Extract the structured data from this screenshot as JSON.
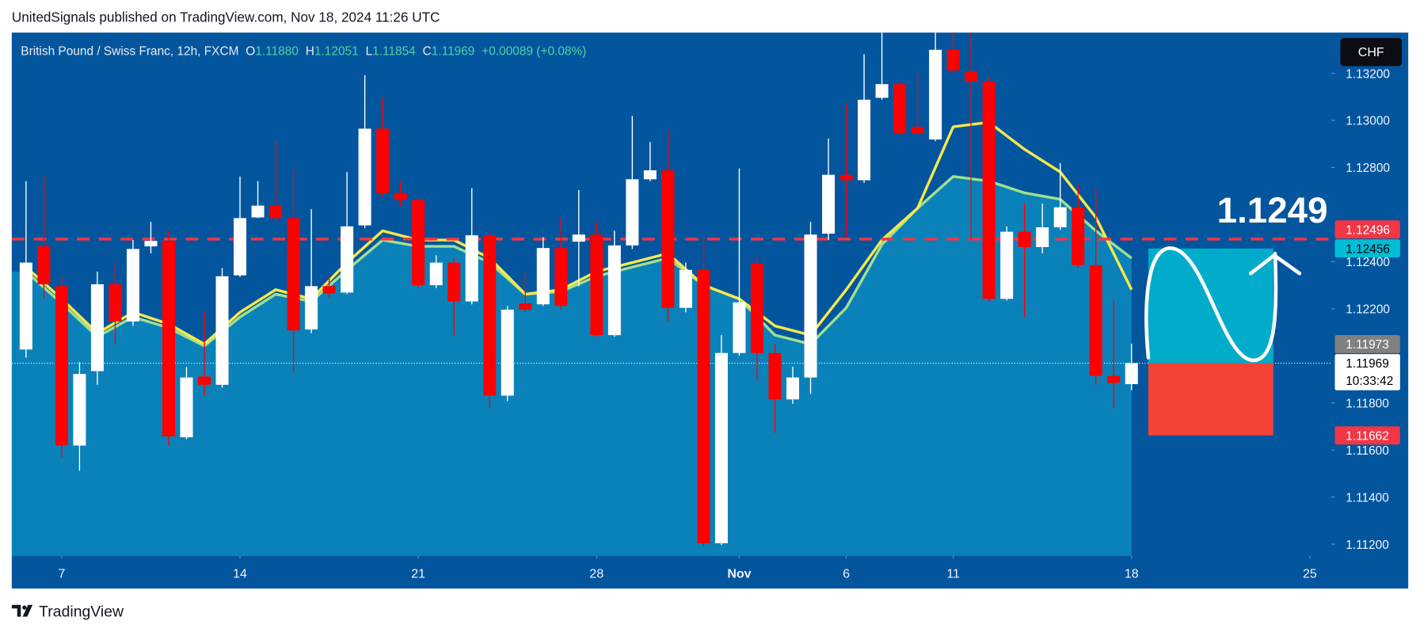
{
  "header": {
    "text": "UnitedSignals published on TradingView.com, Nov 18, 2024 11:26 UTC"
  },
  "chart_data": {
    "type": "candlestick",
    "legend": {
      "symbol": "British Pound / Swiss Franc, 12h, FXCM",
      "o_label": "O",
      "o": "1.11880",
      "h_label": "H",
      "h": "1.12051",
      "l_label": "L",
      "l": "1.11854",
      "c_label": "C",
      "c": "1.11969",
      "change": "+0.00089 (+0.08%)"
    },
    "currency_button": "CHF",
    "up_color": "#ffffff",
    "down_color": "#ff0000",
    "x": [
      -1,
      -0.5,
      0,
      0.5,
      1,
      1.5,
      2,
      2.5,
      3,
      3.5,
      4,
      4.5,
      5,
      5.5,
      6,
      6.5,
      7,
      7.5,
      8,
      8.5,
      9,
      9.5,
      10,
      10.5,
      11,
      11.5,
      12,
      12.5,
      13,
      13.5,
      14,
      14.5,
      15,
      15.5,
      16,
      16.5,
      17,
      17.5,
      18,
      18.5,
      19,
      19.5,
      20,
      20.5,
      21,
      21.5,
      22,
      22.5,
      23,
      23.5,
      24,
      24.5,
      25,
      25.5,
      26,
      26.5,
      27,
      27.5,
      28,
      28.5,
      29,
      29.5,
      30
    ],
    "open": [
      1.12027,
      1.12465,
      1.12296,
      1.11619,
      1.11935,
      1.12304,
      1.12146,
      1.12465,
      1.12488,
      1.11654,
      1.11912,
      1.11877,
      1.12342,
      1.12588,
      1.12638,
      1.12585,
      1.12112,
      1.12296,
      1.12269,
      1.12554,
      1.12965,
      1.12692,
      1.12662,
      1.123,
      1.12396,
      1.12231,
      1.12512,
      1.11831,
      1.12223,
      1.12219,
      1.12458,
      1.12485,
      1.12515,
      1.12088,
      1.12469,
      1.1275,
      1.12788,
      1.12204,
      1.12365,
      1.11204,
      1.12012,
      1.12392,
      1.12012,
      1.11815,
      1.11908,
      1.12519,
      1.12769,
      1.12746,
      1.13096,
      1.13154,
      1.12973,
      1.12919,
      1.133,
      1.13208,
      1.13165,
      1.12242,
      1.12527,
      1.12462,
      1.12546,
      1.12631,
      1.12385,
      1.11915,
      1.1188
    ],
    "high": [
      1.12742,
      1.12762,
      1.12338,
      1.11973,
      1.12358,
      1.12396,
      1.12492,
      1.12569,
      1.12531,
      1.11954,
      1.12185,
      1.12373,
      1.12762,
      1.12742,
      1.12915,
      1.128,
      1.12623,
      1.12338,
      1.12781,
      1.13192,
      1.13096,
      1.12742,
      1.12673,
      1.12427,
      1.12415,
      1.12712,
      1.12531,
      1.12212,
      1.12358,
      1.12504,
      1.12588,
      1.12704,
      1.12569,
      1.12531,
      1.13019,
      1.12908,
      1.12958,
      1.12396,
      1.12512,
      1.12088,
      1.12796,
      1.12415,
      1.1205,
      1.11954,
      1.12569,
      1.12923,
      1.13069,
      1.13281,
      1.134,
      1.13165,
      1.13204,
      1.134,
      1.134,
      1.134,
      1.13185,
      1.1255,
      1.12646,
      1.12646,
      1.12819,
      1.12723,
      1.12712,
      1.12235,
      1.12051
    ],
    "low": [
      1.11992,
      1.12242,
      1.11569,
      1.11512,
      1.11877,
      1.1205,
      1.12127,
      1.12435,
      1.11619,
      1.11646,
      1.11831,
      1.11865,
      1.12335,
      1.12585,
      1.12569,
      1.11927,
      1.12096,
      1.12242,
      1.12262,
      1.12542,
      1.12673,
      1.12635,
      1.12288,
      1.12288,
      1.12088,
      1.12219,
      1.11781,
      1.11808,
      1.12185,
      1.12212,
      1.12196,
      1.12296,
      1.12081,
      1.12081,
      1.12454,
      1.12742,
      1.12146,
      1.12185,
      1.11192,
      1.11196,
      1.12,
      1.11896,
      1.11673,
      1.11796,
      1.11838,
      1.12492,
      1.12504,
      1.12735,
      1.13088,
      1.12935,
      1.12935,
      1.12912,
      1.13196,
      1.12492,
      1.12231,
      1.12235,
      1.12165,
      1.12435,
      1.12535,
      1.12373,
      1.11877,
      1.11781,
      1.11854
    ],
    "close": [
      1.12396,
      1.12304,
      1.11619,
      1.11923,
      1.12304,
      1.12146,
      1.12454,
      1.12488,
      1.11658,
      1.11908,
      1.11877,
      1.12338,
      1.12585,
      1.12638,
      1.12585,
      1.12108,
      1.12296,
      1.12265,
      1.1255,
      1.12965,
      1.12692,
      1.12662,
      1.123,
      1.12396,
      1.12231,
      1.12512,
      1.11831,
      1.12196,
      1.12196,
      1.12458,
      1.12212,
      1.12515,
      1.12088,
      1.12469,
      1.1275,
      1.12788,
      1.12204,
      1.12365,
      1.11204,
      1.12012,
      1.12227,
      1.12012,
      1.11815,
      1.11908,
      1.12515,
      1.12769,
      1.12746,
      1.13088,
      1.13154,
      1.12946,
      1.12946,
      1.133,
      1.13212,
      1.13165,
      1.12242,
      1.12527,
      1.12462,
      1.12546,
      1.12631,
      1.12385,
      1.11915,
      1.11885,
      1.11969
    ],
    "xlim": [
      -1.4,
      35.6
    ],
    "xticks": [
      {
        "value": 0,
        "label": "7"
      },
      {
        "value": 5,
        "label": "14"
      },
      {
        "value": 10,
        "label": "21"
      },
      {
        "value": 15,
        "label": "28"
      },
      {
        "value": 19,
        "label": "Nov"
      },
      {
        "value": 22,
        "label": "6"
      },
      {
        "value": 25,
        "label": "11"
      },
      {
        "value": 30,
        "label": "18"
      },
      {
        "value": 35,
        "label": "25"
      }
    ],
    "ylim": [
      1.1115,
      1.13373
    ],
    "yticks": [
      {
        "value": 1.132,
        "label": "1.13200"
      },
      {
        "value": 1.13,
        "label": "1.13000"
      },
      {
        "value": 1.128,
        "label": "1.12800"
      },
      {
        "value": 1.124,
        "label": "1.12400"
      },
      {
        "value": 1.122,
        "label": "1.12200"
      },
      {
        "value": 1.118,
        "label": "1.11800"
      },
      {
        "value": 1.116,
        "label": "1.11600"
      },
      {
        "value": 1.114,
        "label": "1.11400"
      },
      {
        "value": 1.112,
        "label": "1.11200"
      }
    ],
    "lines": [
      {
        "color": "#9fe08f",
        "fill": "#0b87bb",
        "x": [
          -1,
          0,
          1,
          2,
          3,
          4,
          5,
          6,
          7,
          8,
          9,
          10,
          11,
          12,
          13,
          14,
          15,
          16,
          17,
          18,
          19,
          20,
          21,
          22,
          23,
          24,
          25,
          26,
          27,
          28,
          29,
          30
        ],
        "values": [
          1.12358,
          1.12223,
          1.12081,
          1.12165,
          1.12119,
          1.12042,
          1.12165,
          1.12262,
          1.12231,
          1.12365,
          1.12492,
          1.12465,
          1.12465,
          1.12396,
          1.12262,
          1.12273,
          1.12338,
          1.12377,
          1.12415,
          1.123,
          1.12242,
          1.12088,
          1.1205,
          1.12204,
          1.12473,
          1.12627,
          1.12762,
          1.12742,
          1.12692,
          1.12665,
          1.12531,
          1.12415
        ]
      },
      {
        "color": "#f7e84a",
        "x": [
          -1,
          0,
          1,
          2,
          3,
          4,
          5,
          6,
          7,
          8,
          9,
          10,
          11,
          12,
          13,
          14,
          15,
          16,
          17,
          18,
          19,
          20,
          21,
          22,
          23,
          24,
          25,
          26,
          27,
          28,
          29,
          30
        ],
        "values": [
          1.12377,
          1.12242,
          1.12096,
          1.12185,
          1.12135,
          1.1205,
          1.12185,
          1.12281,
          1.12242,
          1.12396,
          1.12531,
          1.12492,
          1.12492,
          1.12415,
          1.12262,
          1.12281,
          1.12358,
          1.12396,
          1.12435,
          1.123,
          1.12242,
          1.12127,
          1.12088,
          1.12281,
          1.12492,
          1.12627,
          1.12973,
          1.12992,
          1.12877,
          1.12781,
          1.12588,
          1.12281
        ]
      }
    ],
    "hlines": [
      {
        "value": 1.12496,
        "color": "#f23645",
        "style": "dashed"
      },
      {
        "value": 1.11969,
        "color": "#ffffff",
        "style": "dotted"
      }
    ],
    "price_labels": [
      {
        "value": 1.12496,
        "label": "1.12496",
        "color": "#f23645",
        "text_color": "#ffffff"
      },
      {
        "value": 1.12456,
        "label": "1.12456",
        "color": "#00bcd4",
        "text_color": "#000000"
      },
      {
        "value": 1.11973,
        "label": "1.11973",
        "color": "#808080",
        "text_color": "#ffffff"
      },
      {
        "value": 1.11969,
        "label": "1.11969",
        "color": "#ffffff",
        "text_color": "#000000"
      },
      {
        "value": 1.11662,
        "label": "1.11662",
        "color": "#f23645",
        "text_color": "#ffffff"
      }
    ],
    "countdown": "10:33:42",
    "annotation": {
      "text": "1.1249"
    },
    "position": {
      "target": 1.12456,
      "entry": 1.11969,
      "stop": 1.11662
    }
  },
  "footer": {
    "brand": "TradingView"
  }
}
